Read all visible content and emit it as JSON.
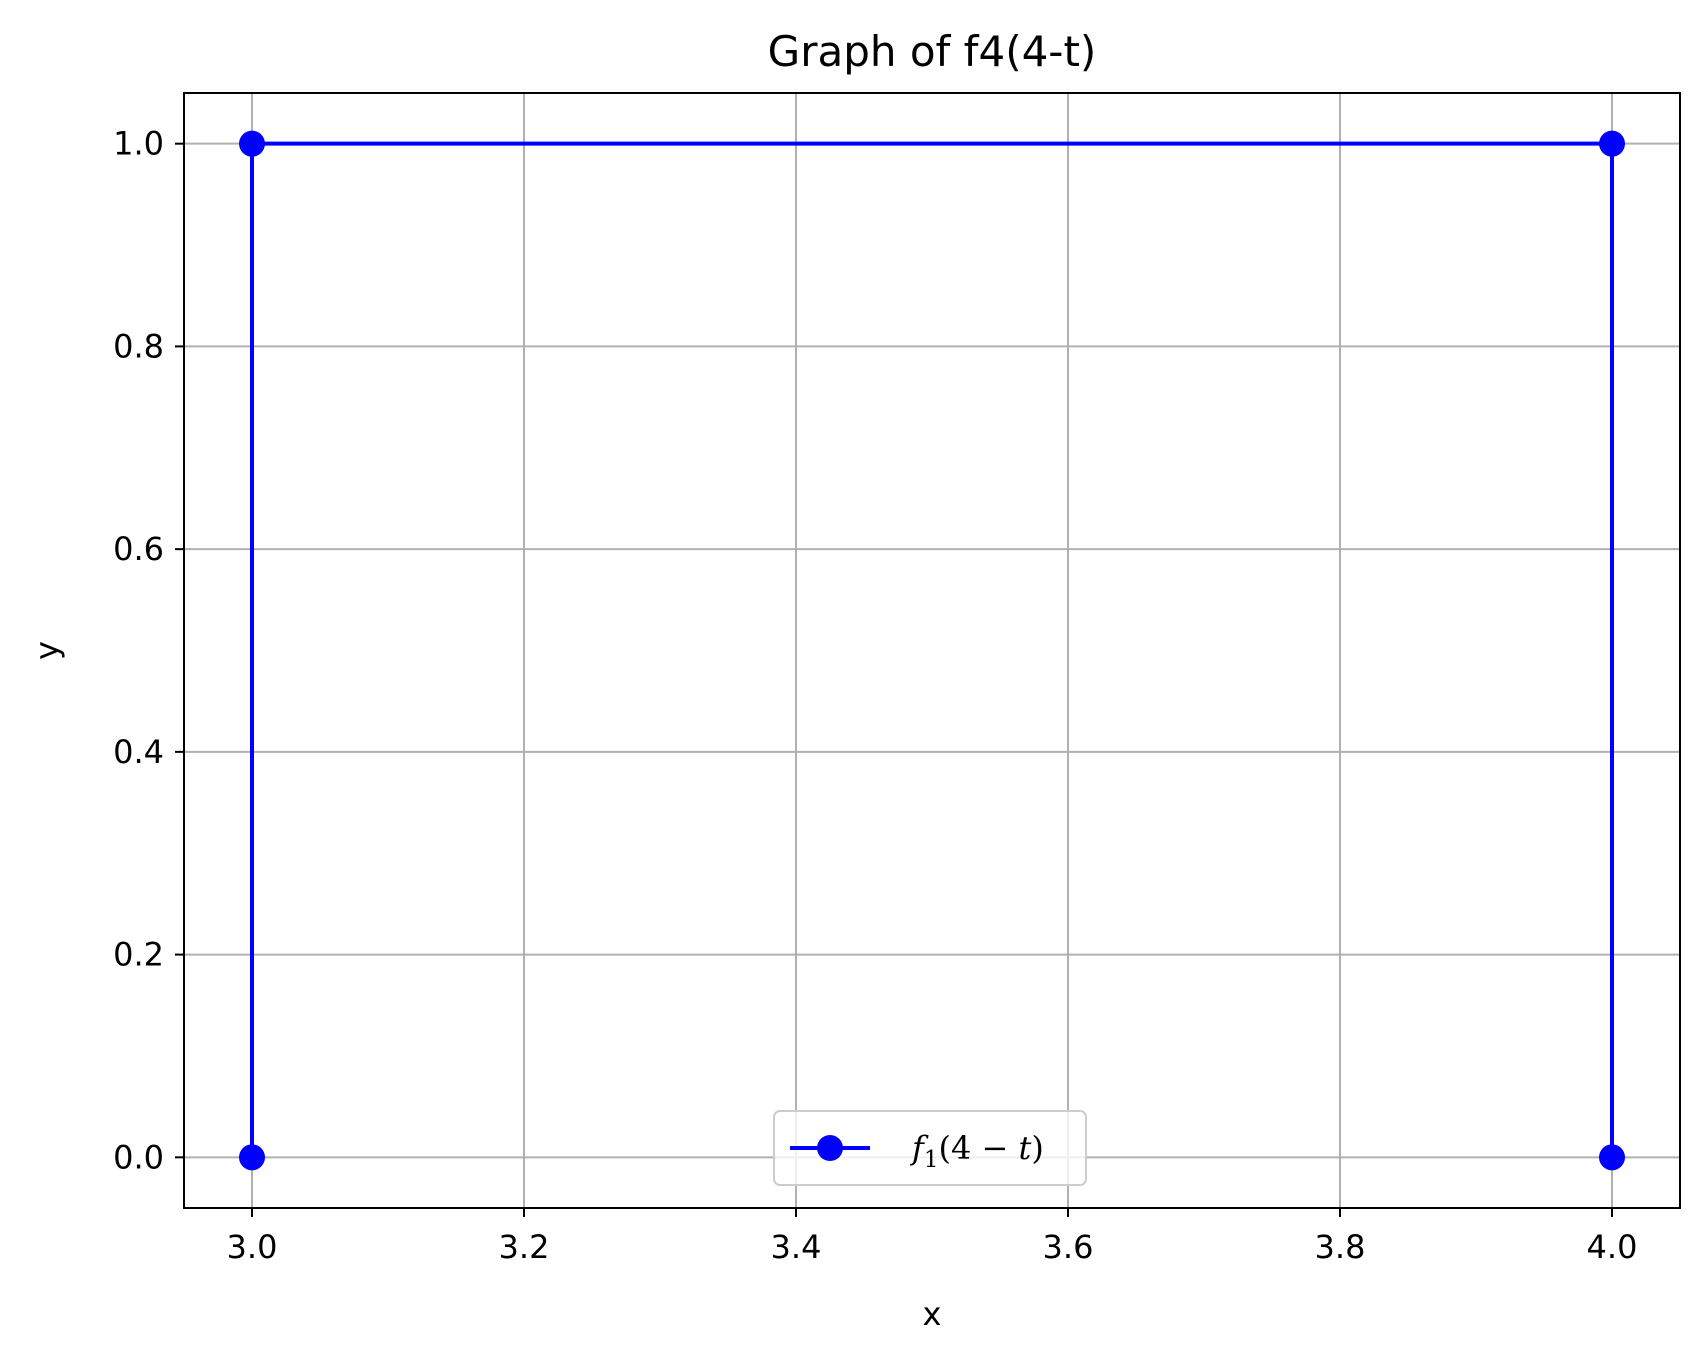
{
  "chart_data": {
    "type": "line",
    "title": "Graph of f4(4-t)",
    "xlabel": "x",
    "ylabel": "y",
    "xlim": [
      2.95,
      4.05
    ],
    "ylim": [
      -0.05,
      1.05
    ],
    "x_ticks": [
      3.0,
      3.2,
      3.4,
      3.6,
      3.8,
      4.0
    ],
    "x_tick_labels": [
      "3.0",
      "3.2",
      "3.4",
      "3.6",
      "3.8",
      "4.0"
    ],
    "y_ticks": [
      0.0,
      0.2,
      0.4,
      0.6,
      0.8,
      1.0
    ],
    "y_tick_labels": [
      "0.0",
      "0.2",
      "0.4",
      "0.6",
      "0.8",
      "1.0"
    ],
    "grid": true,
    "legend_position": "lower center",
    "series": [
      {
        "name": "f1(4 − t)",
        "color": "#0000ff",
        "marker": "circle",
        "x": [
          3.0,
          3.0,
          4.0,
          4.0
        ],
        "y": [
          0.0,
          1.0,
          1.0,
          0.0
        ]
      }
    ]
  }
}
